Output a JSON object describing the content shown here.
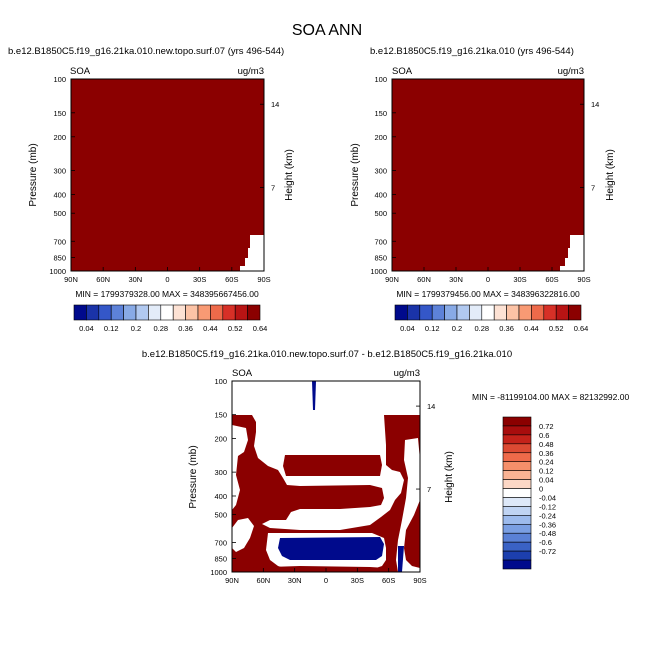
{
  "figure_title": "SOA ANN",
  "chart_data": [
    {
      "type": "heatmap",
      "title": "b.e12.B1850C5.f19_g16.21ka.010.new.topo.surf.07 (yrs 496-544)",
      "variable": "SOA",
      "units": "ug/m3",
      "xlabel": "",
      "ylabel": "Pressure (mb)",
      "ylabel_right": "Height (km)",
      "x_ticks": [
        "90N",
        "60N",
        "30N",
        "0",
        "30S",
        "60S",
        "90S"
      ],
      "y_ticks": [
        "100",
        "150",
        "200",
        "300",
        "400",
        "500",
        "700",
        "850",
        "1000"
      ],
      "y_ticks_right": [
        "14",
        "7"
      ],
      "ylim": [
        100,
        1000
      ],
      "stats": "MIN = 1799379328.00   MAX = 348395667456.00",
      "colorbar_labels": [
        "0.04",
        "0.12",
        "0.2",
        "0.28",
        "0.36",
        "0.44",
        "0.52",
        "0.64"
      ],
      "field": "saturated above max level everywhere"
    },
    {
      "type": "heatmap",
      "title": "b.e12.B1850C5.f19_g16.21ka.010 (yrs 496-544)",
      "variable": "SOA",
      "units": "ug/m3",
      "xlabel": "",
      "ylabel": "Pressure (mb)",
      "ylabel_right": "Height (km)",
      "x_ticks": [
        "90N",
        "60N",
        "30N",
        "0",
        "30S",
        "60S",
        "90S"
      ],
      "y_ticks": [
        "100",
        "150",
        "200",
        "300",
        "400",
        "500",
        "700",
        "850",
        "1000"
      ],
      "y_ticks_right": [
        "14",
        "7"
      ],
      "ylim": [
        100,
        1000
      ],
      "stats": "MIN = 1799379456.00   MAX = 348396322816.00",
      "colorbar_labels": [
        "0.04",
        "0.12",
        "0.2",
        "0.28",
        "0.36",
        "0.44",
        "0.52",
        "0.64"
      ],
      "field": "saturated above max level everywhere"
    },
    {
      "type": "heatmap",
      "title": "b.e12.B1850C5.f19_g16.21ka.010.new.topo.surf.07 - b.e12.B1850C5.f19_g16.21ka.010",
      "variable": "SOA",
      "units": "ug/m3",
      "xlabel": "",
      "ylabel": "Pressure (mb)",
      "ylabel_right": "Height (km)",
      "x_ticks": [
        "90N",
        "60N",
        "30N",
        "0",
        "30S",
        "60S",
        "90S"
      ],
      "y_ticks": [
        "100",
        "150",
        "200",
        "300",
        "400",
        "500",
        "700",
        "850",
        "1000"
      ],
      "y_ticks_right": [
        "14",
        "7"
      ],
      "ylim": [
        100,
        1000
      ],
      "stats": "MIN = -81199104.00   MAX = 82132992.00",
      "colorbar_labels": [
        "0.72",
        "0.6",
        "0.48",
        "0.36",
        "0.24",
        "0.12",
        "0.04",
        "0",
        "-0.04",
        "-0.12",
        "-0.24",
        "-0.36",
        "-0.48",
        "-0.6",
        "-0.72"
      ]
    }
  ],
  "colors": {
    "saturated_red": "#8b0000",
    "saturated_blue": "#000a8c",
    "neutral": "#ffffff",
    "diverging_scale": [
      "#8b0000",
      "#b81414",
      "#d73027",
      "#ee6a4a",
      "#f89a74",
      "#fcc3a6",
      "#fde2d4",
      "#fff2ec",
      "#ffffff",
      "#eaf0fb",
      "#d1e0f7",
      "#b1c9f0",
      "#88aae6",
      "#5d82d9",
      "#3457c8",
      "#1a33a8",
      "#000a8c"
    ]
  }
}
